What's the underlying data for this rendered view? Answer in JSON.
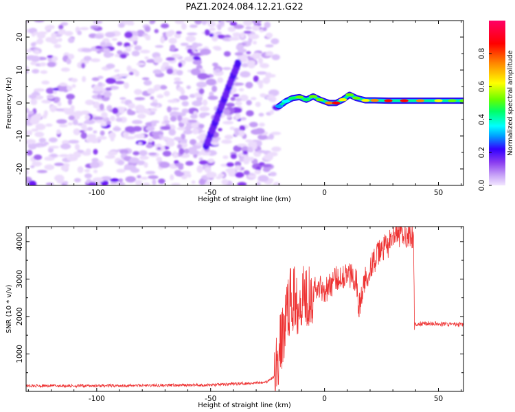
{
  "title": "PAZ1.2024.084.12.21.G22",
  "chart_data": [
    {
      "type": "heatmap",
      "xlabel": "Height of straight line (km)",
      "ylabel": "Frequency (Hz)",
      "xlim": [
        -131,
        61
      ],
      "ylim": [
        -25,
        25
      ],
      "xticks": [
        -100,
        -50,
        0,
        50
      ],
      "yticks": [
        -20,
        -10,
        0,
        10,
        20
      ],
      "colorbar": {
        "label": "Normalized spectral amplitude",
        "range": [
          0,
          1
        ],
        "ticks": [
          0.0,
          0.2,
          0.4,
          0.6,
          0.8
        ],
        "colormap": [
          "#f2e6ff",
          "#c9a5f7",
          "#8a3cf0",
          "#3300ff",
          "#00a0ff",
          "#00ffff",
          "#00ff66",
          "#66ff00",
          "#ffff00",
          "#ff8800",
          "#ff0000",
          "#ff0066"
        ]
      },
      "noise_region_x": [
        -131,
        -21
      ],
      "signal_track": [
        {
          "x": -20,
          "y": -1.0,
          "amp": 0.35
        },
        {
          "x": -17,
          "y": 0.5,
          "amp": 0.45
        },
        {
          "x": -14,
          "y": 1.5,
          "amp": 0.55
        },
        {
          "x": -11,
          "y": 1.8,
          "amp": 0.6
        },
        {
          "x": -8,
          "y": 1.0,
          "amp": 0.55
        },
        {
          "x": -5,
          "y": 2.0,
          "amp": 0.65
        },
        {
          "x": -2,
          "y": 1.0,
          "amp": 0.6
        },
        {
          "x": 2,
          "y": 0.0,
          "amp": 0.85
        },
        {
          "x": 5,
          "y": 0.0,
          "amp": 0.9
        },
        {
          "x": 8,
          "y": 1.0,
          "amp": 0.7
        },
        {
          "x": 11,
          "y": 2.5,
          "amp": 0.65
        },
        {
          "x": 14,
          "y": 1.5,
          "amp": 0.6
        },
        {
          "x": 18,
          "y": 0.8,
          "amp": 0.75
        },
        {
          "x": 22,
          "y": 0.8,
          "amp": 0.85
        },
        {
          "x": 28,
          "y": 0.7,
          "amp": 0.9
        },
        {
          "x": 35,
          "y": 0.7,
          "amp": 0.9
        },
        {
          "x": 42,
          "y": 0.7,
          "amp": 0.85
        },
        {
          "x": 50,
          "y": 0.7,
          "amp": 0.7
        },
        {
          "x": 56,
          "y": 0.7,
          "amp": 0.65
        },
        {
          "x": 61,
          "y": 0.7,
          "amp": 0.6
        }
      ]
    },
    {
      "type": "line",
      "xlabel": "Height of straight line (km)",
      "ylabel": "SNR (10 * v/v)",
      "xlim": [
        -131,
        61
      ],
      "ylim": [
        0,
        4400
      ],
      "xticks": [
        -100,
        -50,
        0,
        50
      ],
      "yticks": [
        1000,
        2000,
        3000,
        4000
      ],
      "color": "#ee3333",
      "series": [
        {
          "x": [
            -131,
            -100,
            -75,
            -50,
            -40,
            -30,
            -25,
            -22,
            -20,
            -18,
            -16,
            -14,
            -12,
            -10,
            -8,
            -5,
            -2,
            0,
            2,
            5,
            8,
            10,
            12,
            14,
            15,
            18,
            20,
            22,
            25,
            28,
            30,
            32,
            35,
            38,
            39,
            39.5,
            40,
            45,
            50,
            55,
            61
          ],
          "values": [
            150,
            150,
            160,
            170,
            200,
            230,
            260,
            400,
            1000,
            1600,
            2300,
            2500,
            2400,
            2600,
            2600,
            2700,
            2800,
            2700,
            2800,
            3000,
            3100,
            3100,
            3100,
            3000,
            2200,
            3000,
            3300,
            3500,
            3800,
            3900,
            4100,
            4150,
            4200,
            4150,
            4100,
            1800,
            1780,
            1820,
            1800,
            1790,
            1780
          ]
        }
      ]
    }
  ]
}
